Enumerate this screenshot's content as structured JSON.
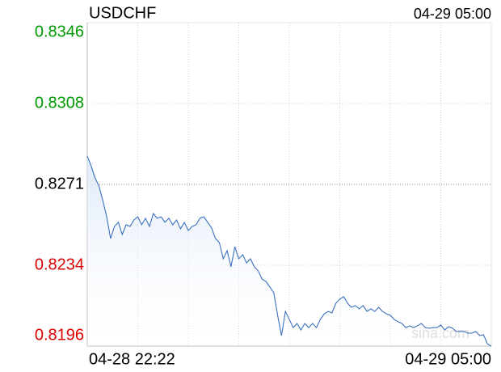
{
  "chart_data": {
    "type": "line",
    "title": "USDCHF",
    "date_label": "04-29 05:00",
    "watermark": "sina.com",
    "ylim": [
      0.8196,
      0.8346
    ],
    "yticks": [
      {
        "value": 0.8346,
        "label": "0.8346"
      },
      {
        "value": 0.83085,
        "label": "0.8308"
      },
      {
        "value": 0.8271,
        "label": "0.8271"
      },
      {
        "value": 0.82335,
        "label": "0.8234"
      },
      {
        "value": 0.8196,
        "label": "0.8196"
      }
    ],
    "ytick_colors": [
      "#009900",
      "#009900",
      "#000000",
      "#dd0000",
      "#dd0000"
    ],
    "reference_tick": 2,
    "grid": true,
    "color": "#3a6fbf",
    "fill_color": "#dbe7f8",
    "categories": [
      "04-28 22:22",
      null,
      null,
      null,
      null,
      null,
      null,
      null,
      null,
      null,
      null,
      null,
      null,
      null,
      null,
      null,
      null,
      null,
      null,
      null,
      null,
      null,
      null,
      null,
      null,
      null,
      null,
      null,
      null,
      null,
      null,
      null,
      null,
      null,
      null,
      null,
      null,
      null,
      null,
      null,
      null,
      null,
      null,
      null,
      null,
      null,
      null,
      null,
      null,
      null,
      null,
      null,
      null,
      null,
      null,
      null,
      null,
      null,
      null,
      null,
      null,
      null,
      null,
      null,
      null,
      null,
      null,
      null,
      null,
      null,
      null,
      null,
      null,
      null,
      null,
      null,
      null,
      null,
      null,
      null,
      null,
      null,
      null,
      null,
      null,
      null,
      null,
      null,
      null,
      null,
      null,
      null,
      null,
      null,
      null,
      null,
      null,
      null,
      null,
      null,
      null,
      null,
      null,
      null,
      "04-29 05:00"
    ],
    "values": [
      0.82841,
      0.82796,
      0.8274,
      0.82703,
      0.82635,
      0.8256,
      0.82459,
      0.82515,
      0.82534,
      0.82478,
      0.82523,
      0.82515,
      0.82545,
      0.8256,
      0.82523,
      0.82553,
      0.82515,
      0.82575,
      0.82553,
      0.8256,
      0.82534,
      0.82553,
      0.82523,
      0.82545,
      0.82504,
      0.82534,
      0.82496,
      0.82515,
      0.82523,
      0.82553,
      0.8256,
      0.82534,
      0.82508,
      0.82459,
      0.8244,
      0.82365,
      0.82403,
      0.82328,
      0.82421,
      0.82365,
      0.82384,
      0.82346,
      0.82365,
      0.82328,
      0.82309,
      0.82271,
      0.8226,
      0.82234,
      0.82208,
      0.82103,
      0.82009,
      0.82121,
      0.82084,
      0.82046,
      0.82065,
      0.82035,
      0.82065,
      0.82046,
      0.82065,
      0.82046,
      0.82084,
      0.8211,
      0.82121,
      0.82114,
      0.82159,
      0.82178,
      0.82189,
      0.82159,
      0.8214,
      0.82148,
      0.82133,
      0.82148,
      0.82121,
      0.82133,
      0.82121,
      0.8214,
      0.82121,
      0.8211,
      0.82103,
      0.82084,
      0.82073,
      0.82065,
      0.82046,
      0.82054,
      0.82046,
      0.82054,
      0.82065,
      0.82046,
      0.82043,
      0.82046,
      0.82046,
      0.82058,
      0.82035,
      0.8205,
      0.82043,
      0.82028,
      0.82028,
      0.82028,
      0.8202,
      0.8202,
      0.82028,
      0.82009,
      0.82013,
      0.81971,
      0.8196
    ]
  }
}
